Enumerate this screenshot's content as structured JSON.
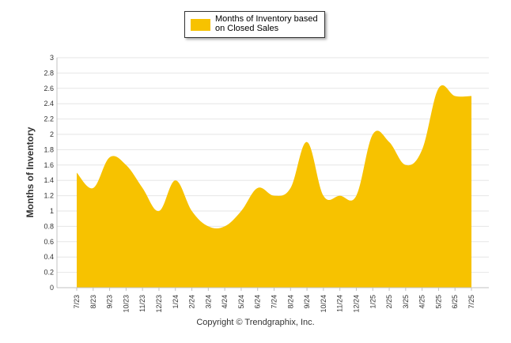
{
  "chart_data": {
    "type": "area",
    "title": "",
    "xlabel": "",
    "ylabel": "Months of Inventory",
    "ylim": [
      0,
      3
    ],
    "yticks": [
      "0",
      "0.2",
      "0.4",
      "0.6",
      "0.8",
      "1",
      "1.2",
      "1.4",
      "1.6",
      "1.8",
      "2",
      "2.2",
      "2.4",
      "2.6",
      "2.8",
      "3"
    ],
    "grid": true,
    "legend_position": "top-center",
    "categories": [
      "7/23",
      "8/23",
      "9/23",
      "10/23",
      "11/23",
      "12/23",
      "1/24",
      "2/24",
      "3/24",
      "4/24",
      "5/24",
      "6/24",
      "7/24",
      "8/24",
      "9/24",
      "10/24",
      "11/24",
      "12/24",
      "1/25",
      "2/25",
      "3/25",
      "4/25",
      "5/25",
      "6/25",
      "7/25"
    ],
    "series": [
      {
        "name": "Months of Inventory based on Closed Sales",
        "color": "#f7c200",
        "values": [
          1.5,
          1.3,
          1.7,
          1.6,
          1.3,
          1.0,
          1.4,
          1.0,
          0.8,
          0.8,
          1.0,
          1.3,
          1.2,
          1.3,
          1.9,
          1.2,
          1.2,
          1.2,
          2.0,
          1.9,
          1.6,
          1.8,
          2.6,
          2.5,
          2.5
        ]
      }
    ]
  },
  "legend": {
    "label": "Months of Inventory based on Closed Sales",
    "color": "#f7c200"
  },
  "footer": {
    "copyright": "Copyright © Trendgraphix, Inc."
  }
}
